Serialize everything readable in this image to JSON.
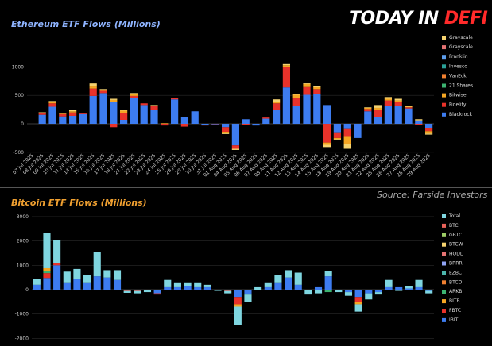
{
  "brand": {
    "today": "TODAY IN ",
    "defi": "DEFI"
  },
  "source": "Source: Farside Investors",
  "chart_data": [
    {
      "type": "bar",
      "stacked": true,
      "title": "Ethereum ETF Flows (Millions)",
      "ylim": [
        -500,
        1000
      ],
      "yticks": [
        -500,
        0,
        500,
        1000
      ],
      "grid": true,
      "legend_position": "right",
      "categories": [
        "07 Jul 2025",
        "08 Jul 2025",
        "09 Jul 2025",
        "10 Jul 2025",
        "11 Jul 2025",
        "14 Jul 2025",
        "15 Jul 2025",
        "16 Jul 2025",
        "17 Jul 2025",
        "18 Jul 2025",
        "21 Jul 2025",
        "22 Jul 2025",
        "23 Jul 2025",
        "24 Jul 2025",
        "25 Jul 2025",
        "28 Jul 2025",
        "29 Jul 2025",
        "30 Jul 2025",
        "31 Jul 2025",
        "01 Aug 2025",
        "04 Aug 2025",
        "05 Aug 2025",
        "06 Aug 2025",
        "07 Aug 2025",
        "08 Aug 2025",
        "11 Aug 2025",
        "12 Aug 2025",
        "13 Aug 2025",
        "14 Aug 2025",
        "15 Aug 2025",
        "18 Aug 2025",
        "19 Aug 2025",
        "20 Aug 2025",
        "21 Aug 2025",
        "22 Aug 2025",
        "25 Aug 2025",
        "26 Aug 2025",
        "27 Aug 2025",
        "28 Aug 2025",
        "29 Aug 2025"
      ],
      "series": [
        {
          "name": "Blackrock",
          "color": "#3d7cf0",
          "values": [
            0,
            158,
            300,
            130,
            140,
            170,
            490,
            540,
            380,
            70,
            450,
            330,
            240,
            0,
            430,
            120,
            220,
            -20,
            -10,
            -60,
            -380,
            80,
            -30,
            90,
            250,
            640,
            310,
            510,
            520,
            330,
            -150,
            -80,
            -250,
            220,
            120,
            320,
            310,
            270,
            60,
            -70
          ]
        },
        {
          "name": "Fidelity",
          "color": "#e8322a",
          "values": [
            0,
            30,
            60,
            40,
            60,
            20,
            130,
            40,
            -60,
            120,
            40,
            30,
            70,
            -30,
            30,
            -50,
            0,
            -10,
            -10,
            -80,
            -60,
            -20,
            0,
            20,
            110,
            360,
            150,
            150,
            90,
            -330,
            -100,
            -150,
            0,
            40,
            120,
            90,
            70,
            20,
            -20,
            -60
          ]
        },
        {
          "name": "Bitwise",
          "color": "#f5a623",
          "values": [
            0,
            10,
            20,
            10,
            20,
            0,
            50,
            20,
            40,
            40,
            30,
            0,
            10,
            10,
            0,
            0,
            0,
            0,
            0,
            -20,
            0,
            0,
            0,
            0,
            30,
            30,
            50,
            40,
            40,
            -40,
            -20,
            -120,
            0,
            20,
            40,
            30,
            30,
            10,
            0,
            -40
          ]
        },
        {
          "name": "Grayscale",
          "color": "#f6d36f",
          "values": [
            0,
            5,
            20,
            10,
            20,
            0,
            40,
            10,
            20,
            20,
            20,
            0,
            10,
            0,
            0,
            0,
            0,
            0,
            0,
            -20,
            -20,
            0,
            0,
            0,
            40,
            20,
            20,
            20,
            20,
            -40,
            -20,
            -90,
            0,
            10,
            50,
            30,
            30,
            10,
            20,
            -20
          ]
        },
        {
          "name": "Grayscale",
          "color": "#e57373",
          "values": [
            0,
            0,
            0,
            0,
            0,
            0,
            0,
            0,
            0,
            0,
            0,
            0,
            0,
            0,
            0,
            0,
            0,
            0,
            0,
            0,
            0,
            0,
            0,
            0,
            0,
            0,
            0,
            0,
            0,
            0,
            0,
            0,
            0,
            0,
            0,
            0,
            0,
            0,
            0,
            0
          ]
        },
        {
          "name": "Franklin",
          "color": "#5c9ded",
          "values": [
            0,
            0,
            0,
            0,
            0,
            0,
            0,
            0,
            0,
            0,
            0,
            0,
            0,
            0,
            0,
            0,
            0,
            0,
            0,
            0,
            0,
            0,
            0,
            0,
            0,
            0,
            0,
            0,
            0,
            0,
            0,
            0,
            0,
            0,
            0,
            0,
            0,
            0,
            0,
            0
          ]
        },
        {
          "name": "Invesco",
          "color": "#2aa198",
          "values": [
            0,
            0,
            0,
            0,
            0,
            0,
            0,
            0,
            0,
            0,
            0,
            0,
            0,
            0,
            0,
            0,
            0,
            0,
            0,
            0,
            0,
            0,
            0,
            0,
            0,
            0,
            0,
            0,
            0,
            0,
            0,
            0,
            0,
            0,
            0,
            0,
            0,
            0,
            0,
            0
          ]
        },
        {
          "name": "VanEck",
          "color": "#f08030",
          "values": [
            0,
            0,
            0,
            0,
            0,
            0,
            0,
            0,
            0,
            0,
            0,
            0,
            0,
            0,
            0,
            0,
            0,
            0,
            0,
            0,
            0,
            0,
            0,
            0,
            0,
            0,
            0,
            0,
            0,
            0,
            0,
            0,
            0,
            0,
            0,
            0,
            0,
            0,
            0,
            0
          ]
        },
        {
          "name": "21 Shares",
          "color": "#3cb371",
          "values": [
            0,
            0,
            0,
            0,
            0,
            0,
            0,
            0,
            0,
            0,
            0,
            0,
            0,
            0,
            0,
            0,
            0,
            0,
            0,
            0,
            0,
            0,
            0,
            0,
            0,
            0,
            0,
            0,
            0,
            0,
            0,
            0,
            0,
            0,
            0,
            0,
            0,
            0,
            0,
            0
          ]
        }
      ],
      "legend": [
        "Grayscale",
        "Grayscale",
        "Franklin",
        "Invesco",
        "VanEck",
        "21 Shares",
        "Bitwise",
        "Fidelity",
        "Blackrock"
      ]
    },
    {
      "type": "bar",
      "stacked": true,
      "title": "Bitcoin ETF Flows (Millions)",
      "ylim": [
        -2000,
        3000
      ],
      "yticks": [
        -1000,
        0,
        1000,
        2000,
        3000
      ],
      "grid": true,
      "legend_position": "right",
      "categories_count": 40,
      "series": [
        {
          "name": "IBIT",
          "color": "#3d7cf0",
          "values": [
            200,
            480,
            1000,
            300,
            450,
            300,
            550,
            500,
            400,
            0,
            0,
            0,
            -150,
            100,
            100,
            150,
            100,
            100,
            0,
            0,
            -300,
            -200,
            0,
            100,
            300,
            500,
            200,
            0,
            100,
            550,
            0,
            -100,
            -300,
            -150,
            -100,
            100,
            100,
            50,
            100,
            -50
          ]
        },
        {
          "name": "FBTC",
          "color": "#e8322a",
          "values": [
            0,
            200,
            100,
            0,
            0,
            0,
            0,
            0,
            0,
            -50,
            -50,
            0,
            -50,
            0,
            0,
            0,
            0,
            0,
            0,
            -50,
            -300,
            0,
            0,
            0,
            0,
            0,
            0,
            0,
            0,
            0,
            0,
            0,
            -200,
            0,
            0,
            0,
            0,
            0,
            0,
            0
          ]
        },
        {
          "name": "ARKB",
          "color": "#3cb371",
          "values": [
            0,
            100,
            0,
            0,
            0,
            0,
            0,
            0,
            0,
            0,
            0,
            0,
            0,
            0,
            0,
            0,
            0,
            0,
            0,
            0,
            0,
            0,
            0,
            0,
            0,
            0,
            0,
            0,
            0,
            -100,
            0,
            0,
            0,
            0,
            0,
            0,
            0,
            0,
            0,
            0
          ]
        },
        {
          "name": "BITB",
          "color": "#f5a623",
          "values": [
            0,
            100,
            0,
            0,
            0,
            0,
            0,
            0,
            0,
            0,
            0,
            0,
            0,
            0,
            0,
            0,
            0,
            0,
            0,
            0,
            -100,
            0,
            0,
            0,
            0,
            0,
            0,
            0,
            0,
            0,
            0,
            0,
            -100,
            0,
            0,
            0,
            0,
            0,
            0,
            0
          ]
        },
        {
          "name": "Total",
          "color": "#7fd6e0",
          "values": [
            250,
            1450,
            940,
            440,
            400,
            300,
            1010,
            300,
            400,
            -80,
            -100,
            -100,
            0,
            300,
            200,
            150,
            200,
            100,
            -50,
            -100,
            -750,
            -300,
            100,
            200,
            300,
            300,
            500,
            -200,
            -150,
            200,
            -100,
            -150,
            -300,
            -250,
            -100,
            300,
            -50,
            100,
            300,
            -100
          ]
        },
        {
          "name": "BTC",
          "color": "#e8625a",
          "values": [
            0,
            0,
            0,
            0,
            0,
            0,
            0,
            0,
            0,
            0,
            0,
            0,
            0,
            0,
            0,
            0,
            0,
            0,
            0,
            0,
            0,
            0,
            0,
            0,
            0,
            0,
            0,
            0,
            0,
            0,
            0,
            0,
            0,
            0,
            0,
            0,
            0,
            0,
            0,
            0
          ]
        },
        {
          "name": "GBTC",
          "color": "#9ccc65",
          "values": [
            0,
            0,
            0,
            0,
            0,
            0,
            0,
            0,
            0,
            0,
            0,
            0,
            0,
            0,
            0,
            0,
            0,
            0,
            0,
            0,
            0,
            0,
            0,
            0,
            0,
            0,
            0,
            0,
            0,
            0,
            0,
            0,
            0,
            0,
            0,
            0,
            0,
            0,
            0,
            0
          ]
        },
        {
          "name": "BTCW",
          "color": "#f6d36f",
          "values": [
            0,
            0,
            0,
            0,
            0,
            0,
            0,
            0,
            0,
            0,
            0,
            0,
            0,
            0,
            0,
            0,
            0,
            0,
            0,
            0,
            0,
            0,
            0,
            0,
            0,
            0,
            0,
            0,
            0,
            0,
            0,
            0,
            0,
            0,
            0,
            0,
            0,
            0,
            0,
            0
          ]
        },
        {
          "name": "HODL",
          "color": "#e57373",
          "values": [
            0,
            0,
            0,
            0,
            0,
            0,
            0,
            0,
            0,
            0,
            0,
            0,
            0,
            0,
            0,
            0,
            0,
            0,
            0,
            0,
            0,
            0,
            0,
            0,
            0,
            0,
            0,
            0,
            0,
            0,
            0,
            0,
            0,
            0,
            0,
            0,
            0,
            0,
            0,
            0
          ]
        },
        {
          "name": "BRRR",
          "color": "#90a4f5",
          "values": [
            0,
            0,
            0,
            0,
            0,
            0,
            0,
            0,
            0,
            0,
            0,
            0,
            0,
            0,
            0,
            0,
            0,
            0,
            0,
            0,
            0,
            0,
            0,
            0,
            0,
            0,
            0,
            0,
            0,
            0,
            0,
            0,
            0,
            0,
            0,
            0,
            0,
            0,
            0,
            0
          ]
        },
        {
          "name": "EZBC",
          "color": "#4db6ac",
          "values": [
            0,
            0,
            0,
            0,
            0,
            0,
            0,
            0,
            0,
            0,
            0,
            0,
            0,
            0,
            0,
            0,
            0,
            0,
            0,
            0,
            0,
            0,
            0,
            0,
            0,
            0,
            0,
            0,
            0,
            0,
            0,
            0,
            0,
            0,
            0,
            0,
            0,
            0,
            0,
            0
          ]
        },
        {
          "name": "BTCO",
          "color": "#f08030",
          "values": [
            0,
            0,
            0,
            0,
            0,
            0,
            0,
            0,
            0,
            0,
            0,
            0,
            0,
            0,
            0,
            0,
            0,
            0,
            0,
            0,
            0,
            0,
            0,
            0,
            0,
            0,
            0,
            0,
            0,
            0,
            0,
            0,
            0,
            0,
            0,
            0,
            0,
            0,
            0,
            0
          ]
        }
      ],
      "legend": [
        "Total",
        "BTC",
        "GBTC",
        "BTCW",
        "HODL",
        "BRRR",
        "EZBC",
        "BTCO",
        "ARKB",
        "BITB",
        "FBTC",
        "IBIT"
      ],
      "yticklabels_visible": [
        "3000",
        "2000",
        "1000",
        "0",
        "-1000",
        "-2000"
      ]
    }
  ]
}
